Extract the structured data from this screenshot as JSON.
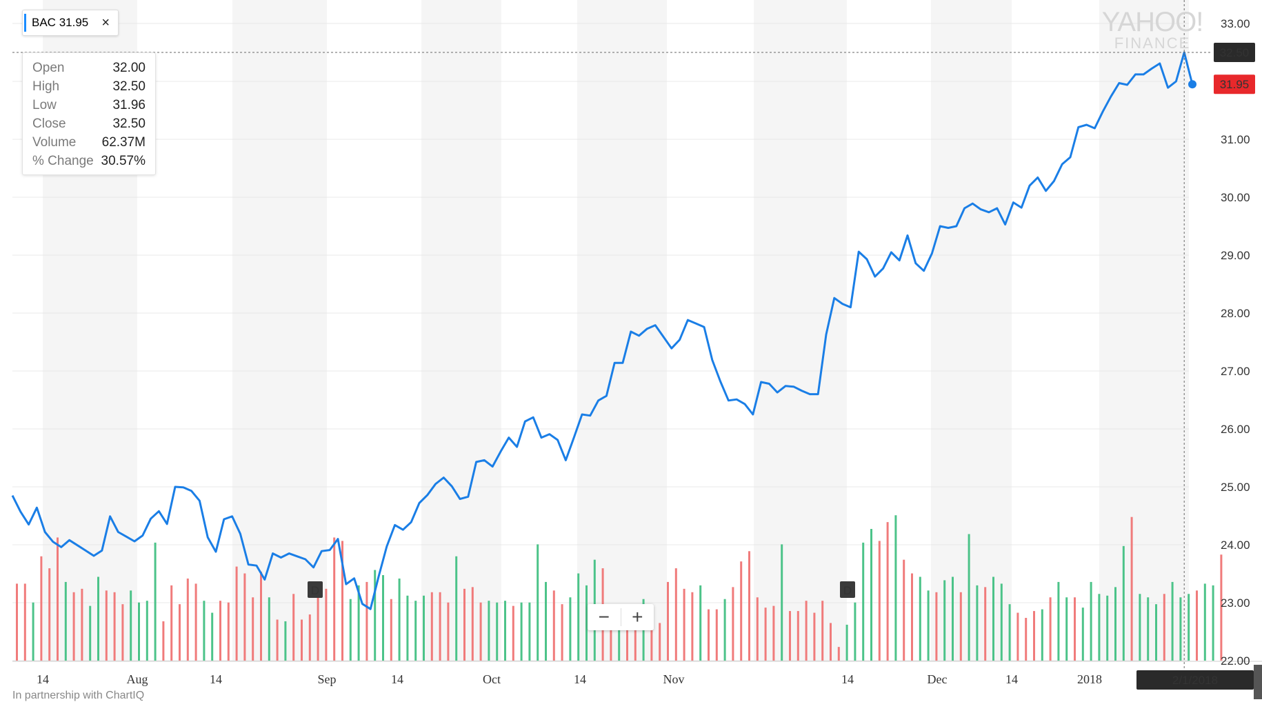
{
  "symbol_chip": {
    "ticker": "BAC",
    "price": "31.95",
    "close_icon": "close-icon"
  },
  "tooltip": [
    {
      "key": "Open",
      "value": "32.00"
    },
    {
      "key": "High",
      "value": "32.50"
    },
    {
      "key": "Low",
      "value": "31.96"
    },
    {
      "key": "Close",
      "value": "32.50"
    },
    {
      "key": "Volume",
      "value": "62.37M"
    },
    {
      "key": "% Change",
      "value": "30.57%"
    }
  ],
  "watermark": {
    "line1": "YAHOO!",
    "line2": "FINANCE"
  },
  "crosshair": {
    "price_label": "32.50",
    "date_label": "2/1/2018"
  },
  "current_price_label": "31.95",
  "event_markers": [
    "D",
    "D"
  ],
  "zoom": {
    "minus": "−",
    "plus": "+"
  },
  "footer": "In partnership with ChartIQ",
  "colors": {
    "line": "#1a7ee6",
    "up": "#4cc389",
    "down": "#f07b7b",
    "band": "#f5f5f5",
    "price_tag": "#e8282b",
    "crosshair_tag": "#2a2a2a"
  },
  "chart_data": {
    "type": "line",
    "series": [
      {
        "name": "BAC",
        "values": [
          24.85,
          24.57,
          24.35,
          24.64,
          24.22,
          24.05,
          23.96,
          24.08,
          23.99,
          23.9,
          23.81,
          23.9,
          24.49,
          24.22,
          24.14,
          24.06,
          24.16,
          24.45,
          24.58,
          24.36,
          25.0,
          24.99,
          24.93,
          24.76,
          24.13,
          23.88,
          24.44,
          24.49,
          24.19,
          23.66,
          23.64,
          23.4,
          23.85,
          23.78,
          23.85,
          23.8,
          23.75,
          23.61,
          23.89,
          23.91,
          24.1,
          23.32,
          23.42,
          22.98,
          22.89,
          23.45,
          23.97,
          24.34,
          24.26,
          24.39,
          24.72,
          24.86,
          25.05,
          25.16,
          25.01,
          24.79,
          24.83,
          25.43,
          25.46,
          25.35,
          25.61,
          25.85,
          25.69,
          26.13,
          26.2,
          25.85,
          25.91,
          25.81,
          25.46,
          25.85,
          26.25,
          26.23,
          26.49,
          26.57,
          27.14,
          27.14,
          27.68,
          27.61,
          27.73,
          27.79,
          27.59,
          27.39,
          27.54,
          27.88,
          27.82,
          27.76,
          27.19,
          26.82,
          26.49,
          26.51,
          26.43,
          26.25,
          26.81,
          26.78,
          26.63,
          26.74,
          26.73,
          26.66,
          26.6,
          26.6,
          27.63,
          28.26,
          28.16,
          28.1,
          29.06,
          28.93,
          28.63,
          28.77,
          29.05,
          28.91,
          29.34,
          28.86,
          28.73,
          29.03,
          29.5,
          29.47,
          29.5,
          29.81,
          29.89,
          29.79,
          29.74,
          29.81,
          29.53,
          29.91,
          29.82,
          30.2,
          30.34,
          30.11,
          30.28,
          30.57,
          30.69,
          31.21,
          31.25,
          31.19,
          31.48,
          31.74,
          31.97,
          31.94,
          32.12,
          32.12,
          32.22,
          32.31,
          31.89,
          32.0,
          32.5,
          31.95
        ]
      }
    ],
    "volume": [
      {
        "v": 0.45,
        "up": false
      },
      {
        "v": 0.45,
        "up": false
      },
      {
        "v": 0.34,
        "up": true
      },
      {
        "v": 0.61,
        "up": false
      },
      {
        "v": 0.54,
        "up": false
      },
      {
        "v": 0.72,
        "up": false
      },
      {
        "v": 0.46,
        "up": true
      },
      {
        "v": 0.4,
        "up": false
      },
      {
        "v": 0.42,
        "up": false
      },
      {
        "v": 0.32,
        "up": true
      },
      {
        "v": 0.49,
        "up": true
      },
      {
        "v": 0.41,
        "up": false
      },
      {
        "v": 0.4,
        "up": false
      },
      {
        "v": 0.33,
        "up": false
      },
      {
        "v": 0.41,
        "up": true
      },
      {
        "v": 0.34,
        "up": true
      },
      {
        "v": 0.35,
        "up": true
      },
      {
        "v": 0.69,
        "up": true
      },
      {
        "v": 0.23,
        "up": false
      },
      {
        "v": 0.44,
        "up": false
      },
      {
        "v": 0.33,
        "up": false
      },
      {
        "v": 0.48,
        "up": false
      },
      {
        "v": 0.45,
        "up": false
      },
      {
        "v": 0.35,
        "up": true
      },
      {
        "v": 0.28,
        "up": true
      },
      {
        "v": 0.35,
        "up": false
      },
      {
        "v": 0.34,
        "up": false
      },
      {
        "v": 0.55,
        "up": false
      },
      {
        "v": 0.51,
        "up": false
      },
      {
        "v": 0.37,
        "up": false
      },
      {
        "v": 0.52,
        "up": false
      },
      {
        "v": 0.37,
        "up": true
      },
      {
        "v": 0.24,
        "up": false
      },
      {
        "v": 0.23,
        "up": true
      },
      {
        "v": 0.39,
        "up": false
      },
      {
        "v": 0.24,
        "up": false
      },
      {
        "v": 0.27,
        "up": false
      },
      {
        "v": 0.42,
        "up": false
      },
      {
        "v": 0.42,
        "up": false
      },
      {
        "v": 0.72,
        "up": false
      },
      {
        "v": 0.7,
        "up": false
      },
      {
        "v": 0.36,
        "up": true
      },
      {
        "v": 0.44,
        "up": true
      },
      {
        "v": 0.46,
        "up": false
      },
      {
        "v": 0.53,
        "up": true
      },
      {
        "v": 0.5,
        "up": true
      },
      {
        "v": 0.36,
        "up": false
      },
      {
        "v": 0.48,
        "up": true
      },
      {
        "v": 0.38,
        "up": true
      },
      {
        "v": 0.35,
        "up": true
      },
      {
        "v": 0.38,
        "up": true
      },
      {
        "v": 0.4,
        "up": false
      },
      {
        "v": 0.4,
        "up": false
      },
      {
        "v": 0.34,
        "up": false
      },
      {
        "v": 0.61,
        "up": true
      },
      {
        "v": 0.42,
        "up": false
      },
      {
        "v": 0.43,
        "up": false
      },
      {
        "v": 0.34,
        "up": false
      },
      {
        "v": 0.35,
        "up": true
      },
      {
        "v": 0.34,
        "up": true
      },
      {
        "v": 0.35,
        "up": true
      },
      {
        "v": 0.32,
        "up": false
      },
      {
        "v": 0.34,
        "up": true
      },
      {
        "v": 0.34,
        "up": true
      },
      {
        "v": 0.68,
        "up": true
      },
      {
        "v": 0.46,
        "up": true
      },
      {
        "v": 0.41,
        "up": false
      },
      {
        "v": 0.33,
        "up": false
      },
      {
        "v": 0.37,
        "up": true
      },
      {
        "v": 0.51,
        "up": true
      },
      {
        "v": 0.44,
        "up": true
      },
      {
        "v": 0.59,
        "up": true
      },
      {
        "v": 0.54,
        "up": false
      },
      {
        "v": 0.31,
        "up": false
      },
      {
        "v": 0.33,
        "up": true
      },
      {
        "v": 0.31,
        "up": false
      },
      {
        "v": 0.26,
        "up": false
      },
      {
        "v": 0.36,
        "up": true
      },
      {
        "v": 0.22,
        "up": false
      },
      {
        "v": 0.22,
        "up": false
      },
      {
        "v": 0.46,
        "up": false
      },
      {
        "v": 0.54,
        "up": false
      },
      {
        "v": 0.42,
        "up": false
      },
      {
        "v": 0.4,
        "up": false
      },
      {
        "v": 0.44,
        "up": true
      },
      {
        "v": 0.3,
        "up": false
      },
      {
        "v": 0.3,
        "up": false
      },
      {
        "v": 0.36,
        "up": true
      },
      {
        "v": 0.43,
        "up": false
      },
      {
        "v": 0.58,
        "up": false
      },
      {
        "v": 0.64,
        "up": false
      },
      {
        "v": 0.37,
        "up": false
      },
      {
        "v": 0.31,
        "up": false
      },
      {
        "v": 0.32,
        "up": false
      },
      {
        "v": 0.68,
        "up": true
      },
      {
        "v": 0.29,
        "up": false
      },
      {
        "v": 0.29,
        "up": false
      },
      {
        "v": 0.35,
        "up": false
      },
      {
        "v": 0.28,
        "up": false
      },
      {
        "v": 0.35,
        "up": false
      },
      {
        "v": 0.22,
        "up": false
      },
      {
        "v": 0.08,
        "up": false
      },
      {
        "v": 0.21,
        "up": true
      },
      {
        "v": 0.34,
        "up": true
      },
      {
        "v": 0.69,
        "up": true
      },
      {
        "v": 0.77,
        "up": true
      },
      {
        "v": 0.7,
        "up": false
      },
      {
        "v": 0.81,
        "up": false
      },
      {
        "v": 0.85,
        "up": true
      },
      {
        "v": 0.59,
        "up": false
      },
      {
        "v": 0.51,
        "up": false
      },
      {
        "v": 0.49,
        "up": true
      },
      {
        "v": 0.41,
        "up": true
      },
      {
        "v": 0.4,
        "up": false
      },
      {
        "v": 0.47,
        "up": true
      },
      {
        "v": 0.49,
        "up": true
      },
      {
        "v": 0.4,
        "up": false
      },
      {
        "v": 0.74,
        "up": true
      },
      {
        "v": 0.44,
        "up": true
      },
      {
        "v": 0.43,
        "up": false
      },
      {
        "v": 0.49,
        "up": true
      },
      {
        "v": 0.45,
        "up": true
      },
      {
        "v": 0.33,
        "up": true
      },
      {
        "v": 0.28,
        "up": false
      },
      {
        "v": 0.25,
        "up": false
      },
      {
        "v": 0.29,
        "up": false
      },
      {
        "v": 0.3,
        "up": true
      },
      {
        "v": 0.37,
        "up": false
      },
      {
        "v": 0.46,
        "up": true
      },
      {
        "v": 0.37,
        "up": true
      },
      {
        "v": 0.37,
        "up": false
      },
      {
        "v": 0.31,
        "up": true
      },
      {
        "v": 0.46,
        "up": true
      },
      {
        "v": 0.39,
        "up": true
      },
      {
        "v": 0.38,
        "up": true
      },
      {
        "v": 0.43,
        "up": true
      },
      {
        "v": 0.67,
        "up": true
      },
      {
        "v": 0.84,
        "up": false
      },
      {
        "v": 0.39,
        "up": true
      },
      {
        "v": 0.37,
        "up": true
      },
      {
        "v": 0.33,
        "up": true
      },
      {
        "v": 0.39,
        "up": false
      },
      {
        "v": 0.46,
        "up": true
      },
      {
        "v": 0.37,
        "up": true
      },
      {
        "v": 0.39,
        "up": true
      },
      {
        "v": 0.41,
        "up": false
      },
      {
        "v": 0.45,
        "up": true
      },
      {
        "v": 0.44,
        "up": true
      },
      {
        "v": 0.62,
        "up": false
      }
    ],
    "x_ticks": [
      "14",
      "Aug",
      "14",
      "Sep",
      "14",
      "Oct",
      "14",
      "Nov",
      "14",
      "Dec",
      "14",
      "2018",
      "14"
    ],
    "y_ticks": [
      "33.00",
      "31.00",
      "30.00",
      "29.00",
      "28.00",
      "27.00",
      "26.00",
      "25.00",
      "24.00",
      "23.00",
      "22.00"
    ],
    "ylim": [
      22.0,
      33.0
    ],
    "legend": "top-left",
    "grid": true
  }
}
